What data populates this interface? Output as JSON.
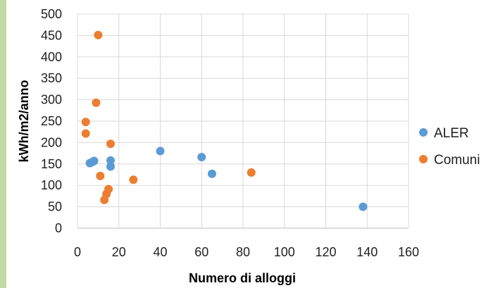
{
  "chart_data": {
    "type": "scatter",
    "title": "",
    "xlabel": "Numero di alloggi",
    "ylabel": "kWh/m2/anno",
    "xlim": [
      0,
      160
    ],
    "ylim": [
      0,
      500
    ],
    "x_ticks": [
      0,
      20,
      40,
      60,
      80,
      100,
      120,
      140,
      160
    ],
    "y_ticks": [
      0,
      50,
      100,
      150,
      200,
      250,
      300,
      350,
      400,
      450,
      500
    ],
    "grid": true,
    "legend_position": "right",
    "series": [
      {
        "name": "ALER",
        "color": "#5b9bd5",
        "points": [
          [
            6,
            152
          ],
          [
            7,
            154
          ],
          [
            8,
            157
          ],
          [
            16,
            158
          ],
          [
            16,
            144
          ],
          [
            40,
            180
          ],
          [
            60,
            166
          ],
          [
            65,
            127
          ],
          [
            138,
            50
          ]
        ]
      },
      {
        "name": "Comuni",
        "color": "#ed7d31",
        "points": [
          [
            4,
            248
          ],
          [
            4,
            221
          ],
          [
            9,
            293
          ],
          [
            10,
            451
          ],
          [
            11,
            122
          ],
          [
            13,
            66
          ],
          [
            14,
            80
          ],
          [
            15,
            91
          ],
          [
            16,
            197
          ],
          [
            27,
            113
          ],
          [
            84,
            130
          ]
        ]
      }
    ]
  }
}
